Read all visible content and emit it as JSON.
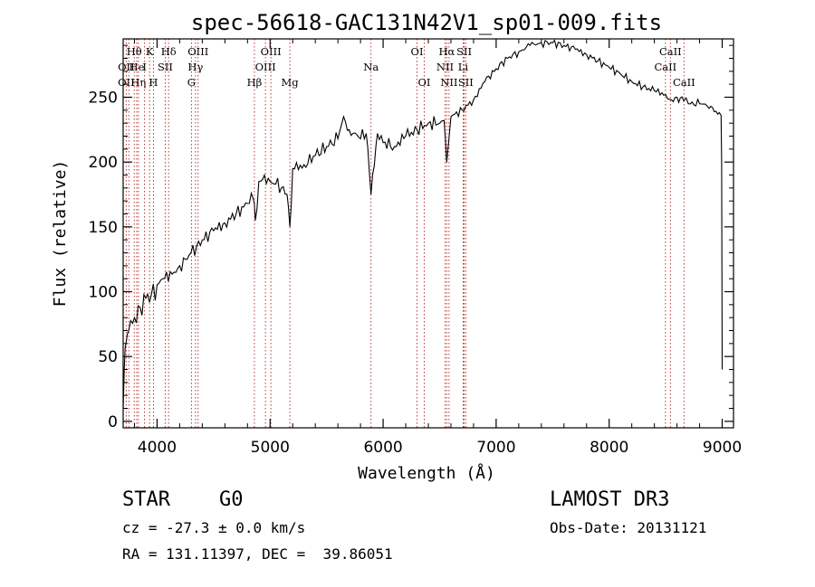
{
  "chart_data": {
    "type": "line",
    "title": "spec-56618-GAC131N42V1_sp01-009.fits",
    "xlabel": "Wavelength (Å)",
    "ylabel": "Flux (relative)",
    "xlim": [
      3700,
      9100
    ],
    "ylim": [
      -5,
      295
    ],
    "xticks": [
      4000,
      5000,
      6000,
      7000,
      8000,
      9000
    ],
    "yticks": [
      0,
      50,
      100,
      150,
      200,
      250
    ],
    "grid": false,
    "series": [
      {
        "name": "spectrum",
        "x": [
          3700,
          3710,
          3725,
          3750,
          3800,
          3850,
          3900,
          3950,
          4000,
          4050,
          4100,
          4150,
          4200,
          4250,
          4300,
          4350,
          4400,
          4500,
          4600,
          4700,
          4800,
          4850,
          4870,
          4900,
          4950,
          5000,
          5050,
          5100,
          5150,
          5175,
          5200,
          5300,
          5400,
          5500,
          5600,
          5650,
          5700,
          5800,
          5850,
          5893,
          5950,
          6000,
          6100,
          6200,
          6300,
          6400,
          6500,
          6540,
          6563,
          6600,
          6700,
          6800,
          6900,
          7000,
          7100,
          7200,
          7300,
          7400,
          7500,
          7600,
          7700,
          7800,
          7900,
          8000,
          8100,
          8200,
          8300,
          8400,
          8500,
          8550,
          8600,
          8660,
          8700,
          8800,
          8900,
          8990,
          8995,
          9000
        ],
        "y": [
          10,
          40,
          60,
          70,
          80,
          88,
          95,
          98,
          105,
          110,
          108,
          115,
          120,
          125,
          130,
          135,
          140,
          147,
          153,
          160,
          168,
          172,
          155,
          185,
          190,
          185,
          183,
          180,
          175,
          150,
          195,
          198,
          205,
          212,
          218,
          235,
          225,
          218,
          222,
          175,
          222,
          215,
          212,
          220,
          225,
          230,
          230,
          232,
          200,
          235,
          240,
          248,
          262,
          272,
          280,
          285,
          290,
          292,
          292,
          290,
          287,
          283,
          278,
          273,
          268,
          262,
          258,
          255,
          252,
          248,
          250,
          247,
          245,
          245,
          243,
          236,
          200,
          40
        ]
      }
    ],
    "line_labels": [
      {
        "text": "Hθ",
        "wl": 3798,
        "row": 0
      },
      {
        "text": "K",
        "wl": 3934,
        "row": 0
      },
      {
        "text": "Hδ",
        "wl": 4102,
        "row": 0
      },
      {
        "text": "OIII",
        "wl": 4363,
        "row": 0
      },
      {
        "text": "OIII",
        "wl": 5007,
        "row": 0
      },
      {
        "text": "OI",
        "wl": 6300,
        "row": 0
      },
      {
        "text": "Hα",
        "wl": 6563,
        "row": 0
      },
      {
        "text": "SII",
        "wl": 6717,
        "row": 0
      },
      {
        "text": "CaII",
        "wl": 8542,
        "row": 0
      },
      {
        "text": "OII",
        "wl": 3727,
        "row": 1
      },
      {
        "text": "He",
        "wl": 3820,
        "row": 1
      },
      {
        "text": "I",
        "wl": 3889,
        "row": 1
      },
      {
        "text": "SII",
        "wl": 4072,
        "row": 1
      },
      {
        "text": "Hγ",
        "wl": 4340,
        "row": 1
      },
      {
        "text": "OIII",
        "wl": 4959,
        "row": 1
      },
      {
        "text": "Na",
        "wl": 5893,
        "row": 1
      },
      {
        "text": "NII",
        "wl": 6548,
        "row": 1
      },
      {
        "text": "Li",
        "wl": 6708,
        "row": 1
      },
      {
        "text": "CaII",
        "wl": 8498,
        "row": 1
      },
      {
        "text": "OII",
        "wl": 3727,
        "row": 2
      },
      {
        "text": "Hη",
        "wl": 3835,
        "row": 2
      },
      {
        "text": "H",
        "wl": 3968,
        "row": 2
      },
      {
        "text": "G",
        "wl": 4304,
        "row": 2
      },
      {
        "text": "Hβ",
        "wl": 4861,
        "row": 2
      },
      {
        "text": "Mg",
        "wl": 5175,
        "row": 2
      },
      {
        "text": "OI",
        "wl": 6364,
        "row": 2
      },
      {
        "text": "NII",
        "wl": 6583,
        "row": 2
      },
      {
        "text": "SII",
        "wl": 6731,
        "row": 2
      },
      {
        "text": "CaII",
        "wl": 8662,
        "row": 2
      }
    ],
    "line_markers": [
      3727,
      3750,
      3798,
      3820,
      3835,
      3889,
      3934,
      3968,
      4072,
      4102,
      4304,
      4340,
      4363,
      4861,
      4959,
      5007,
      5175,
      5893,
      6300,
      6364,
      6548,
      6563,
      6583,
      6708,
      6717,
      6731,
      8498,
      8542,
      8662
    ],
    "colors": {
      "spectrum": "#000000",
      "markers": "#b22222",
      "axes": "#000000"
    }
  },
  "info": {
    "class": "STAR",
    "subclass": "G0",
    "survey": "LAMOST DR3",
    "redshift": "cz = -27.3 ± 0.0 km/s",
    "obs_date": "Obs-Date: 20131121",
    "coords": "RA = 131.11397, DEC =  39.86051"
  }
}
